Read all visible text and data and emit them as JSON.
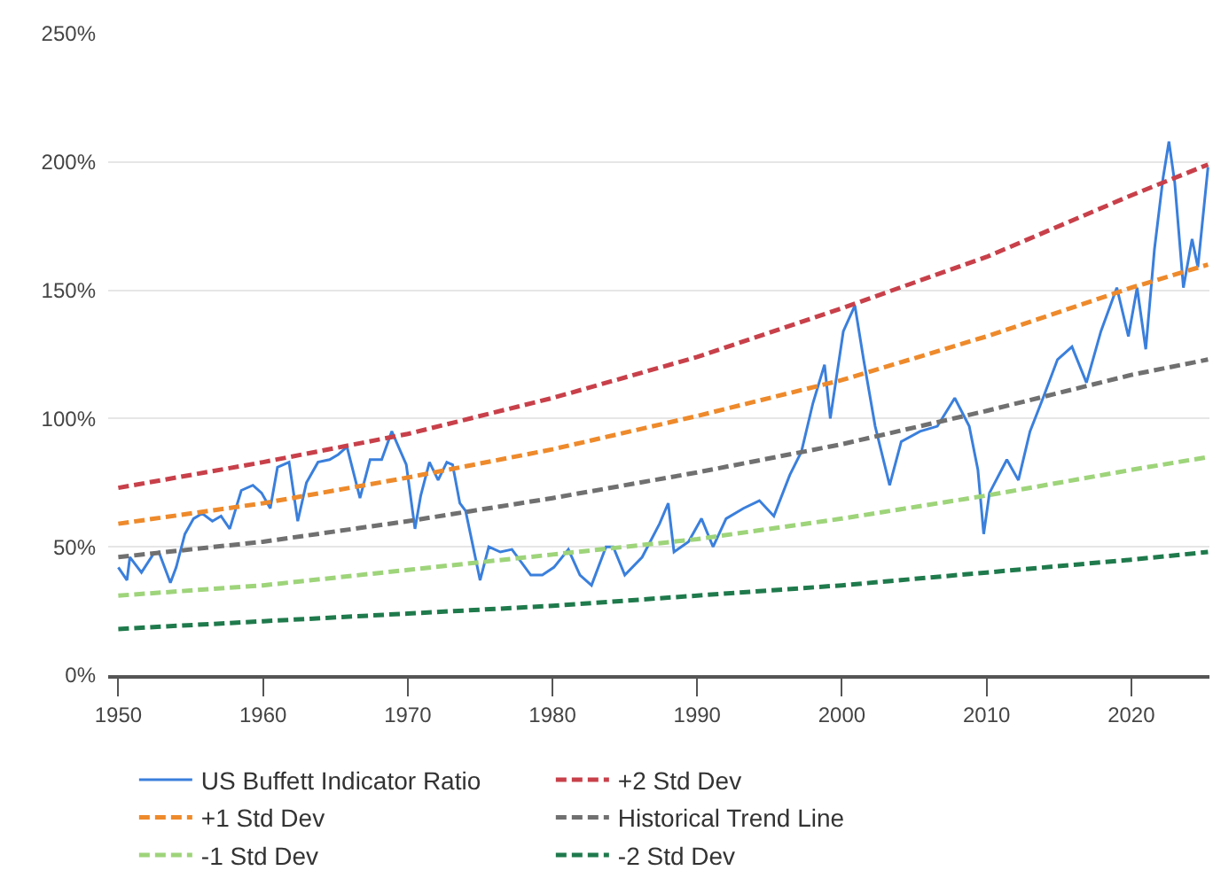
{
  "chart_data": {
    "type": "line",
    "xlim": [
      1949.3,
      2025.4
    ],
    "xticks": [
      1950,
      1960,
      1970,
      1980,
      1990,
      2000,
      2010,
      2020
    ],
    "ylim": [
      0,
      250
    ],
    "yticks": [
      {
        "value": 0,
        "label": "0%"
      },
      {
        "value": 50,
        "label": "50%"
      },
      {
        "value": 100,
        "label": "100%"
      },
      {
        "value": 150,
        "label": "150%"
      },
      {
        "value": 200,
        "label": "200%"
      },
      {
        "value": 250,
        "label": "250%"
      }
    ],
    "grid": "y",
    "legend": "bottom",
    "series": [
      {
        "name": "US Buffett Indicator Ratio",
        "color": "#3a7fdc",
        "line_style": "solid",
        "x": [
          1950.0,
          1950.6,
          1950.8,
          1951.6,
          1952.4,
          1952.8,
          1953.6,
          1954.0,
          1954.6,
          1955.2,
          1955.8,
          1956.5,
          1957.1,
          1957.7,
          1958.5,
          1959.3,
          1959.9,
          1960.5,
          1961.0,
          1961.8,
          1962.4,
          1963.0,
          1963.8,
          1964.6,
          1965.2,
          1965.8,
          1966.7,
          1967.4,
          1968.2,
          1968.9,
          1969.9,
          1970.5,
          1970.9,
          1971.5,
          1972.1,
          1972.7,
          1973.1,
          1973.6,
          1974.0,
          1975.0,
          1975.6,
          1976.4,
          1977.2,
          1978.5,
          1979.3,
          1980.1,
          1981.1,
          1981.9,
          1982.7,
          1983.7,
          1984.2,
          1985.0,
          1986.2,
          1987.4,
          1988.0,
          1988.4,
          1989.4,
          1990.3,
          1991.1,
          1992.0,
          1993.2,
          1994.3,
          1995.3,
          1996.4,
          1997.2,
          1998.0,
          1998.8,
          1999.2,
          2000.1,
          2000.9,
          2001.5,
          2002.3,
          2003.3,
          2004.1,
          2005.4,
          2006.6,
          2007.8,
          2008.8,
          2009.4,
          2009.8,
          2010.2,
          2011.4,
          2012.2,
          2013.0,
          2013.9,
          2014.9,
          2015.9,
          2016.9,
          2017.9,
          2019.0,
          2019.8,
          2020.4,
          2021.0,
          2021.6,
          2022.2,
          2022.6,
          2023.0,
          2023.6,
          2024.2,
          2024.6,
          2025.3
        ],
        "values": [
          42,
          37,
          46,
          40,
          47,
          48,
          36,
          42,
          55,
          61,
          63,
          60,
          62,
          57,
          72,
          74,
          71,
          65,
          81,
          83,
          60,
          75,
          83,
          84,
          86,
          89,
          69,
          84,
          84,
          95,
          82,
          57,
          70,
          83,
          76,
          83,
          82,
          67,
          64,
          37,
          50,
          48,
          49,
          39,
          39,
          42,
          49,
          39,
          35,
          50,
          50,
          39,
          46,
          59,
          67,
          48,
          52,
          61,
          50,
          61,
          65,
          68,
          62,
          78,
          87,
          106,
          121,
          100,
          134,
          144,
          123,
          97,
          74,
          91,
          95,
          97,
          108,
          97,
          80,
          55,
          71,
          84,
          76,
          95,
          108,
          123,
          128,
          114,
          134,
          151,
          132,
          151,
          127,
          166,
          194,
          208,
          192,
          151,
          170,
          159,
          198
        ]
      },
      {
        "name": "+2 Std Dev",
        "color": "#c8404a",
        "line_style": "dashed",
        "x": [
          1950,
          1960,
          1970,
          1980,
          1990,
          2000,
          2010,
          2020,
          2025.3
        ],
        "values": [
          73,
          83,
          94,
          108,
          124,
          143,
          163,
          187,
          199
        ]
      },
      {
        "name": "+1 Std Dev",
        "color": "#ee8a2b",
        "line_style": "dashed",
        "x": [
          1950,
          1960,
          1970,
          1980,
          1990,
          2000,
          2010,
          2020,
          2025.3
        ],
        "values": [
          59,
          67,
          77,
          88,
          101,
          115,
          132,
          151,
          160
        ]
      },
      {
        "name": "Historical Trend Line",
        "color": "#707070",
        "line_style": "dashed",
        "x": [
          1950,
          1960,
          1970,
          1980,
          1990,
          2000,
          2010,
          2020,
          2025.3
        ],
        "values": [
          46,
          52,
          60,
          69,
          79,
          90,
          103,
          117,
          123
        ]
      },
      {
        "name": "-1 Std Dev",
        "color": "#9ed47a",
        "line_style": "dashed",
        "x": [
          1950,
          1960,
          1970,
          1980,
          1990,
          2000,
          2010,
          2020,
          2025.3
        ],
        "values": [
          31,
          35,
          41,
          47,
          53,
          61,
          70,
          80,
          85
        ]
      },
      {
        "name": "-2 Std Dev",
        "color": "#1f7a4c",
        "line_style": "dashed",
        "x": [
          1950,
          1960,
          1970,
          1980,
          1990,
          2000,
          2010,
          2020,
          2025.3
        ],
        "values": [
          18,
          21,
          24,
          27,
          31,
          35,
          40,
          45,
          48
        ]
      }
    ]
  }
}
